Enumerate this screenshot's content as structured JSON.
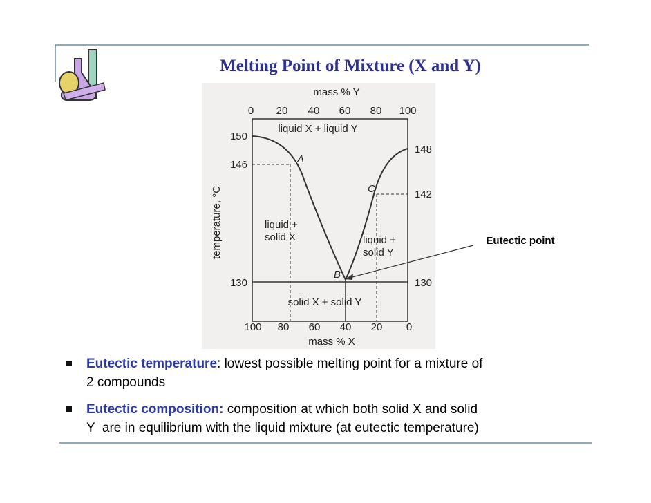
{
  "title": "Melting Point of Mixture (X and Y)",
  "diagram": {
    "top_axis_label": "mass % Y",
    "top_ticks": [
      0,
      20,
      40,
      60,
      80,
      100
    ],
    "bottom_axis_label": "mass % X",
    "bottom_ticks": [
      100,
      80,
      60,
      40,
      20,
      0
    ],
    "y_axis_label": "temperature, °C",
    "left_ticks": [
      150,
      146,
      130
    ],
    "right_ticks": [
      148,
      142,
      130
    ],
    "regions": [
      "liquid X + liquid Y",
      "liquid +",
      "solid X",
      "liquid +",
      "solid Y",
      "solid X + solid Y"
    ],
    "points": [
      "A",
      "B",
      "C"
    ],
    "callout": "Eutectic point"
  },
  "bullets": [
    {
      "term": "Eutectic temperature",
      "lines": [
        ": lowest possible melting point for a mixture of",
        "2 compounds"
      ]
    },
    {
      "term": "Eutectic composition:",
      "lines": [
        " composition at which both solid X and solid",
        "Y  are in equilibrium with the liquid mixture (at eutectic temperature)"
      ]
    }
  ]
}
